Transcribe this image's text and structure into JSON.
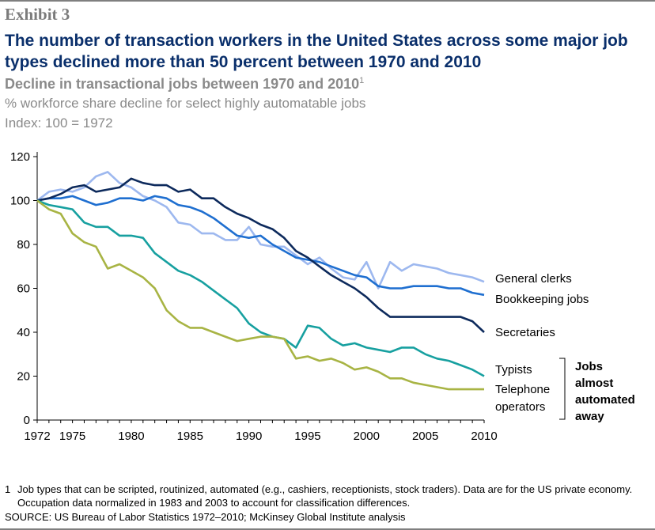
{
  "exhibit": "Exhibit 3",
  "title": "The number of transaction workers in the United States across some major job types declined more than 50 percent between 1970 and 2010",
  "subtitle": "Decline in transactional jobs between 1970 and 2010",
  "subtitle_sup": "1",
  "description_line1": "% workforce share decline for select highly automatable jobs",
  "description_line2": "Index: 100 = 1972",
  "footnote_number": "1",
  "footnote_text": "Job types that can be scripted, routinized, automated (e.g., cashiers, receptionists, stock traders). Data are for the US private economy. Occupation data normalized in 1983 and 2003 to account for classification differences.",
  "source": "SOURCE: US Bureau of Labor Statistics 1972–2010; McKinsey Global Institute analysis",
  "chart_data": {
    "type": "line",
    "title": "Decline in transactional jobs between 1970 and 2010",
    "xlabel": "",
    "ylabel": "",
    "xlim": [
      1972,
      2010
    ],
    "ylim": [
      0,
      120
    ],
    "yticks": [
      0,
      20,
      40,
      60,
      80,
      100,
      120
    ],
    "xticks": [
      1972,
      1975,
      1980,
      1985,
      1990,
      1995,
      2000,
      2005,
      2010
    ],
    "x": [
      1972,
      1973,
      1974,
      1975,
      1976,
      1977,
      1978,
      1979,
      1980,
      1981,
      1982,
      1983,
      1984,
      1985,
      1986,
      1987,
      1988,
      1989,
      1990,
      1991,
      1992,
      1993,
      1994,
      1995,
      1996,
      1997,
      1998,
      1999,
      2000,
      2001,
      2002,
      2003,
      2004,
      2005,
      2006,
      2007,
      2008,
      2009,
      2010
    ],
    "series": [
      {
        "name": "General clerks",
        "label": "General clerks",
        "color": "#9db8ef",
        "values": [
          100,
          104,
          105,
          104,
          106,
          111,
          113,
          108,
          106,
          102,
          100,
          97,
          90,
          89,
          85,
          85,
          82,
          82,
          88,
          80,
          79,
          79,
          75,
          71,
          74,
          69,
          65,
          64,
          72,
          60,
          72,
          68,
          71,
          70,
          69,
          67,
          66,
          65,
          63
        ]
      },
      {
        "name": "Bookkeeping jobs",
        "label": "Bookkeeping jobs",
        "color": "#1f6fd0",
        "values": [
          100,
          101,
          101,
          102,
          100,
          98,
          99,
          101,
          101,
          100,
          102,
          101,
          98,
          97,
          95,
          92,
          88,
          84,
          83,
          84,
          80,
          77,
          74,
          73,
          72,
          70,
          68,
          66,
          65,
          61,
          60,
          60,
          61,
          61,
          61,
          60,
          60,
          58,
          57
        ]
      },
      {
        "name": "Secretaries",
        "label": "Secretaries",
        "color": "#0d2a5c",
        "values": [
          100,
          101,
          103,
          106,
          107,
          104,
          105,
          106,
          110,
          108,
          107,
          107,
          104,
          105,
          101,
          101,
          97,
          94,
          92,
          89,
          87,
          83,
          77,
          74,
          70,
          66,
          63,
          60,
          56,
          51,
          47,
          47,
          47,
          47,
          47,
          47,
          47,
          45,
          40
        ]
      },
      {
        "name": "Typists",
        "label": "Typists",
        "color": "#17a0a0",
        "values": [
          100,
          98,
          97,
          96,
          90,
          88,
          88,
          84,
          84,
          83,
          76,
          72,
          68,
          66,
          63,
          59,
          55,
          51,
          44,
          40,
          38,
          37,
          33,
          43,
          42,
          37,
          34,
          35,
          33,
          32,
          31,
          33,
          33,
          30,
          28,
          27,
          25,
          23,
          20
        ]
      },
      {
        "name": "Telephone operators",
        "label_lines": [
          "Telephone",
          "operators"
        ],
        "color": "#a8b444",
        "values": [
          100,
          96,
          94,
          85,
          81,
          79,
          69,
          71,
          68,
          65,
          60,
          50,
          45,
          42,
          42,
          40,
          38,
          36,
          37,
          38,
          38,
          37,
          28,
          29,
          27,
          28,
          26,
          23,
          24,
          22,
          19,
          19,
          17,
          16,
          15,
          14,
          14,
          14,
          14
        ]
      }
    ],
    "group_annotation": [
      "Jobs",
      "almost",
      "automated",
      "away"
    ]
  }
}
